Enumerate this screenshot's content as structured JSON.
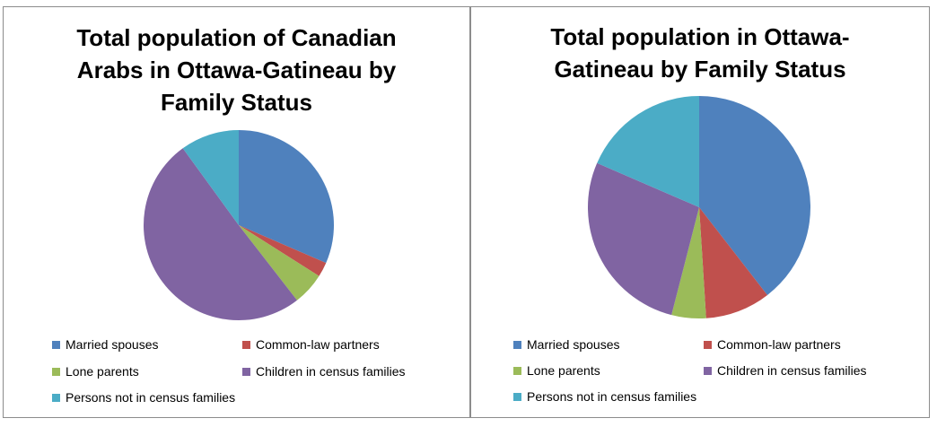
{
  "chart_data": [
    {
      "type": "pie",
      "title": "Total population of Canadian Arabs in Ottawa-Gatineau by Family Status",
      "categories": [
        "Married spouses",
        "Common-law partners",
        "Lone parents",
        "Children in census families",
        "Persons not in census families"
      ],
      "values": [
        31.5,
        2.5,
        5.5,
        50.5,
        10.0
      ],
      "colors": [
        "#4F81BD",
        "#C0504D",
        "#9BBB59",
        "#8064A2",
        "#4BACC6"
      ],
      "legend": "bottom"
    },
    {
      "type": "pie",
      "title": "Total population in Ottawa-Gatineau by Family Status",
      "categories": [
        "Married spouses",
        "Common-law partners",
        "Lone parents",
        "Children in census families",
        "Persons not in census families"
      ],
      "values": [
        39.5,
        9.5,
        5.0,
        27.5,
        18.5
      ],
      "colors": [
        "#4F81BD",
        "#C0504D",
        "#9BBB59",
        "#8064A2",
        "#4BACC6"
      ],
      "legend": "bottom"
    }
  ]
}
